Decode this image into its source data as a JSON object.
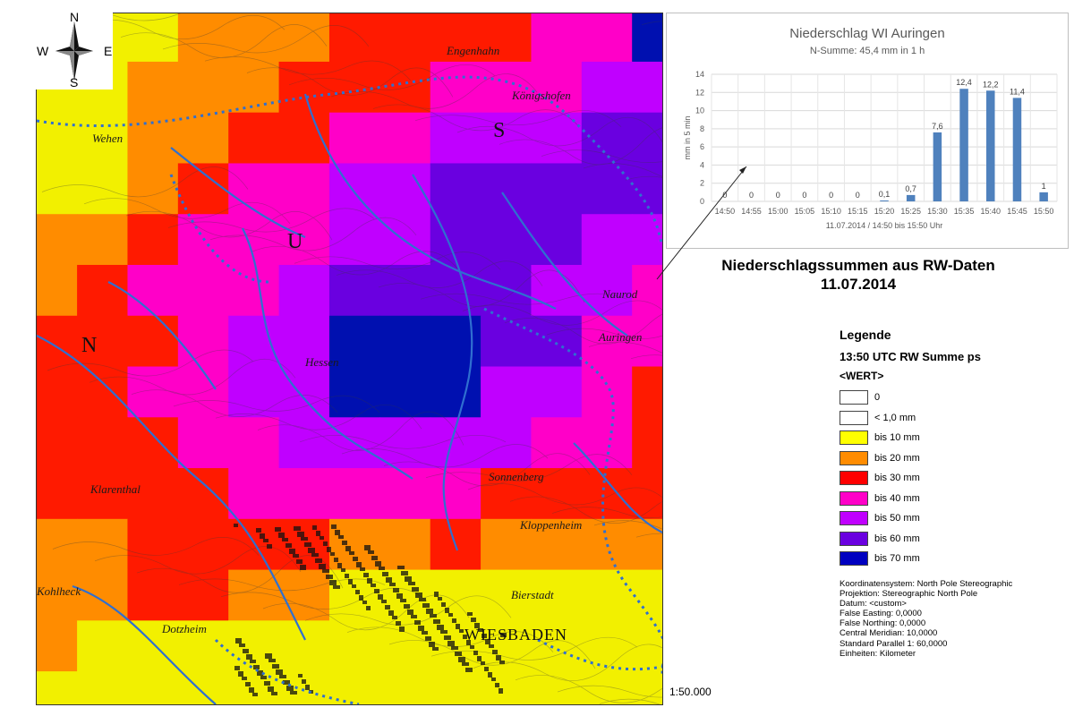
{
  "map": {
    "compass": {
      "n": "N",
      "s": "S",
      "w": "W",
      "e": "E"
    },
    "place_labels": [
      "Naurod",
      "Auringen",
      "Kloppenheim",
      "Sonnenberg",
      "Bierstadt",
      "Wiesbaden",
      "Hessen",
      "Engenhahn",
      "Wehen",
      "Klarenthal",
      "Kohlheck",
      "Dotzheim",
      "Königshofen"
    ],
    "map_letters": [
      "S",
      "U",
      "N"
    ],
    "scale": "1:50.000"
  },
  "chart": {
    "title": "Niederschlag WI Auringen",
    "subtitle": "N-Summe: 45,4 mm in 1 h",
    "chart_data": {
      "type": "bar",
      "title": "Niederschlag WI Auringen",
      "subtitle": "N-Summe: 45,4 mm in 1 h",
      "categories": [
        "14:50",
        "14:55",
        "15:00",
        "15:05",
        "15:10",
        "15:15",
        "15:20",
        "15:25",
        "15:30",
        "15:35",
        "15:40",
        "15:45",
        "15:50"
      ],
      "values": [
        0,
        0,
        0,
        0,
        0,
        0,
        0.1,
        0.7,
        7.6,
        12.4,
        12.2,
        11.4,
        1
      ],
      "data_labels": [
        "0",
        "0",
        "0",
        "0",
        "0",
        "0",
        "0,1",
        "0,7",
        "7,6",
        "12,4",
        "12,2",
        "11,4",
        "1"
      ],
      "ylabel": "mm in 5 min",
      "xlabel": "11.07.2014 / 14:50 bis 15:50 Uhr",
      "ylim": [
        0,
        14
      ],
      "yticks": [
        "0",
        "2",
        "4",
        "6",
        "8",
        "10",
        "12",
        "14"
      ],
      "grid": true,
      "bar_color": "#4f81bd"
    }
  },
  "headline": {
    "line1": "Niederschlagssummen aus RW-Daten",
    "line2": "11.07.2014"
  },
  "legend": {
    "title": "Legende",
    "subtitle": "13:50 UTC RW Summe ps",
    "field": "<WERT>",
    "classes": [
      {
        "label": "0",
        "color": "#ffffff"
      },
      {
        "label": "< 1,0 mm",
        "color": "#ffffff"
      },
      {
        "label": "bis 10 mm",
        "color": "#ffff00"
      },
      {
        "label": "bis 20 mm",
        "color": "#ff8c00"
      },
      {
        "label": "bis 30 mm",
        "color": "#ff0000"
      },
      {
        "label": "bis 40 mm",
        "color": "#ff00c8"
      },
      {
        "label": "bis 50 mm",
        "color": "#c000ff"
      },
      {
        "label": "bis 60 mm",
        "color": "#6a00e0"
      },
      {
        "label": "bis 70 mm",
        "color": "#0000c0"
      }
    ]
  },
  "crs": [
    "Koordinatensystem: North Pole Stereographic",
    "Projektion: Stereographic North Pole",
    "Datum: <custom>",
    "False Easting: 0,0000",
    "False Northing: 0,0000",
    "Central Meridian: 10,0000",
    "Standard Parallel 1: 60,0000",
    "Einheiten: Kilometer"
  ],
  "grid": {
    "levels": [
      "11122233334477",
      "11222333444557",
      "11223344555667",
      "11234455666667",
      "22344455666556",
      "23444566665545",
      "33345577766443",
      "33445577755433",
      "33344555554433",
      "33334444433332",
      "22333322322221",
      "22332211111111",
      "21111111111111",
      "11111111111111"
    ],
    "palette": [
      "#ffffff",
      "#f2f000",
      "#ff8c00",
      "#ff1a00",
      "#ff00c8",
      "#c000ff",
      "#6a00e0",
      "#0010b0"
    ]
  }
}
